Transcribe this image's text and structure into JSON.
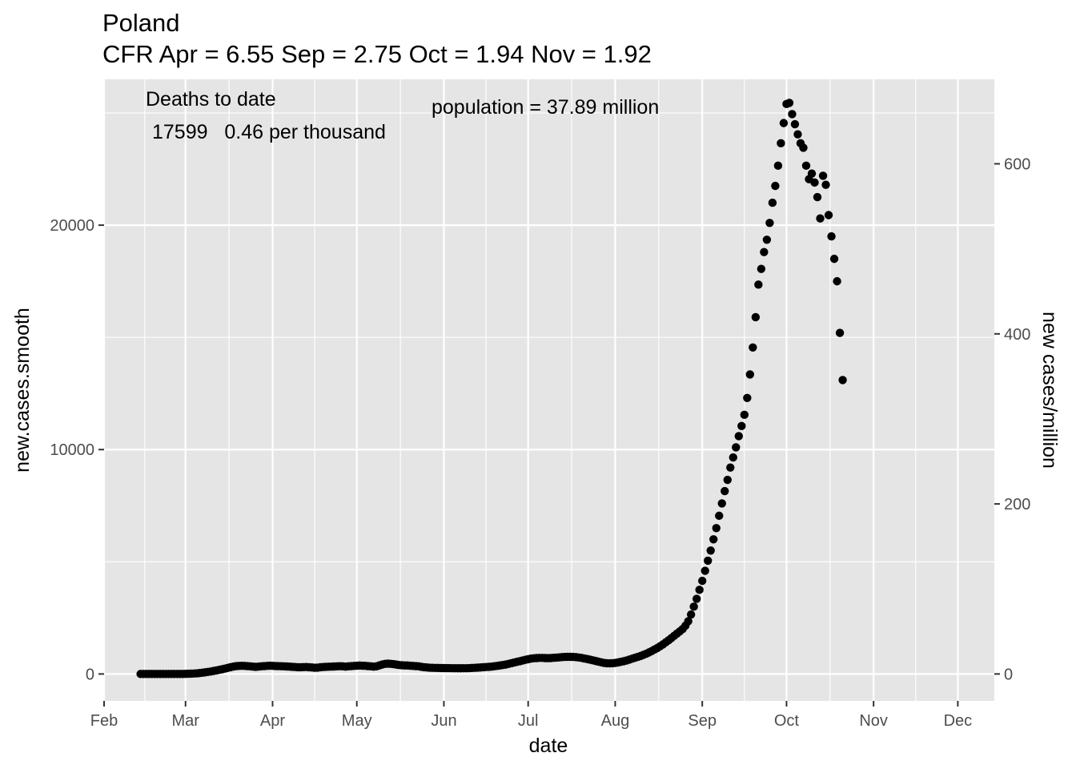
{
  "chart_data": {
    "type": "scatter",
    "title": "Poland",
    "subtitle": "CFR Apr = 6.55  Sep = 2.75  Oct = 1.94  Nov = 1.92",
    "xlabel": "date",
    "ylabel": "new.cases.smooth",
    "y2label": "new cases/million",
    "x_domain": [
      "2020-02-01",
      "2020-12-14"
    ],
    "ylim": [
      -1200,
      26500
    ],
    "y2_scale_per_million": 37.89,
    "x_ticks": [
      {
        "date": "2020-02-01",
        "label": "Feb"
      },
      {
        "date": "2020-03-01",
        "label": "Mar"
      },
      {
        "date": "2020-04-01",
        "label": "Apr"
      },
      {
        "date": "2020-05-01",
        "label": "May"
      },
      {
        "date": "2020-06-01",
        "label": "Jun"
      },
      {
        "date": "2020-07-01",
        "label": "Jul"
      },
      {
        "date": "2020-08-01",
        "label": "Aug"
      },
      {
        "date": "2020-09-01",
        "label": "Sep"
      },
      {
        "date": "2020-10-01",
        "label": "Oct"
      },
      {
        "date": "2020-11-01",
        "label": "Nov"
      },
      {
        "date": "2020-12-01",
        "label": "Dec"
      }
    ],
    "y_ticks": [
      0,
      10000,
      20000
    ],
    "y2_ticks": [
      0,
      200,
      400,
      600
    ],
    "grid": true,
    "annotations": {
      "deaths_header": "Deaths to date",
      "deaths_values": "17599   0.46 per thousand",
      "population": "population = 37.89 million"
    },
    "series": [
      {
        "x_start": "2020-02-14",
        "x_step_days": 1,
        "y": [
          0,
          0,
          0,
          0,
          0,
          0,
          0,
          0,
          0,
          0,
          0,
          0,
          0,
          0,
          0,
          0,
          5,
          10,
          15,
          22,
          30,
          40,
          55,
          72,
          90,
          110,
          135,
          160,
          185,
          210,
          240,
          270,
          300,
          330,
          350,
          360,
          365,
          360,
          350,
          340,
          330,
          320,
          330,
          340,
          350,
          360,
          370,
          365,
          355,
          350,
          345,
          340,
          335,
          330,
          320,
          310,
          300,
          300,
          305,
          310,
          300,
          290,
          280,
          285,
          300,
          310,
          320,
          325,
          330,
          335,
          340,
          345,
          340,
          330,
          340,
          350,
          360,
          370,
          375,
          370,
          365,
          350,
          340,
          330,
          340,
          380,
          420,
          450,
          460,
          455,
          440,
          420,
          400,
          390,
          380,
          380,
          370,
          360,
          350,
          340,
          320,
          300,
          290,
          280,
          275,
          270,
          268,
          265,
          263,
          262,
          260,
          258,
          256,
          255,
          255,
          256,
          258,
          262,
          268,
          275,
          282,
          290,
          300,
          310,
          320,
          330,
          345,
          360,
          380,
          400,
          420,
          450,
          480,
          510,
          540,
          570,
          600,
          630,
          660,
          685,
          700,
          710,
          715,
          715,
          710,
          705,
          710,
          720,
          730,
          740,
          750,
          760,
          765,
          765,
          760,
          750,
          735,
          715,
          690,
          665,
          640,
          610,
          580,
          550,
          520,
          495,
          480,
          475,
          480,
          495,
          515,
          540,
          570,
          600,
          640,
          680,
          720,
          760,
          800,
          850,
          900,
          960,
          1020,
          1090,
          1160,
          1240,
          1320,
          1410,
          1500,
          1600,
          1700,
          1800,
          1900,
          2000,
          2150,
          2350,
          2650,
          3000,
          3350,
          3750,
          4150,
          4600,
          5050,
          5500,
          6000,
          6500,
          7050,
          7600,
          8150,
          8650,
          9200,
          9650,
          10100,
          10600,
          11050,
          11550,
          12300,
          13350,
          14550,
          15900,
          17350,
          18050,
          18800,
          19350,
          20100,
          21000,
          21750,
          22650,
          23650,
          24550,
          25400,
          25450,
          24950,
          24500,
          24050,
          23650,
          23450,
          22650,
          22050,
          22300,
          21900,
          21250,
          20300,
          22200,
          21800,
          20450,
          19500,
          18500,
          17500,
          15200,
          13100
        ]
      }
    ]
  }
}
